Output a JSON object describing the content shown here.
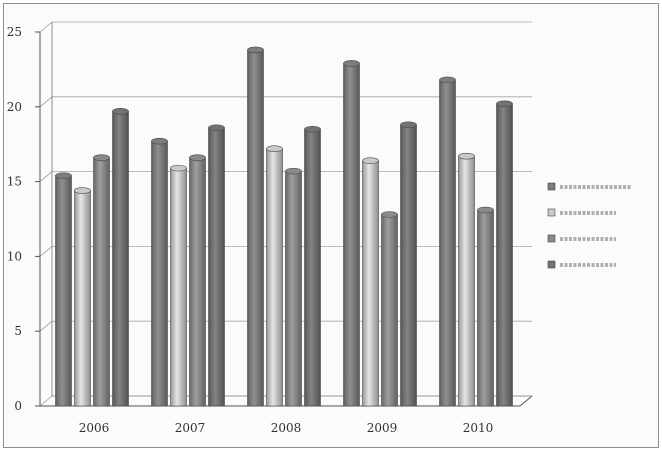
{
  "chart_data": {
    "type": "bar",
    "title": "",
    "xlabel": "",
    "ylabel": "",
    "categories": [
      "2006",
      "2007",
      "2008",
      "2009",
      "2010"
    ],
    "ylim": [
      0,
      25
    ],
    "yticks": [
      0,
      5,
      10,
      15,
      20,
      25
    ],
    "grid": true,
    "legend_position": "right",
    "series": [
      {
        "name": "Series 1",
        "color": "#7d7d7d",
        "values": [
          15.4,
          17.7,
          23.8,
          22.9,
          21.8
        ]
      },
      {
        "name": "Series 2",
        "color": "#c9c9c9",
        "values": [
          14.4,
          15.9,
          17.2,
          16.4,
          16.7
        ]
      },
      {
        "name": "Series 3",
        "color": "#8a8a8a",
        "values": [
          16.6,
          16.6,
          15.7,
          12.8,
          13.1
        ]
      },
      {
        "name": "Series 4",
        "color": "#737373",
        "values": [
          19.7,
          18.6,
          18.5,
          18.8,
          20.2
        ]
      }
    ]
  }
}
